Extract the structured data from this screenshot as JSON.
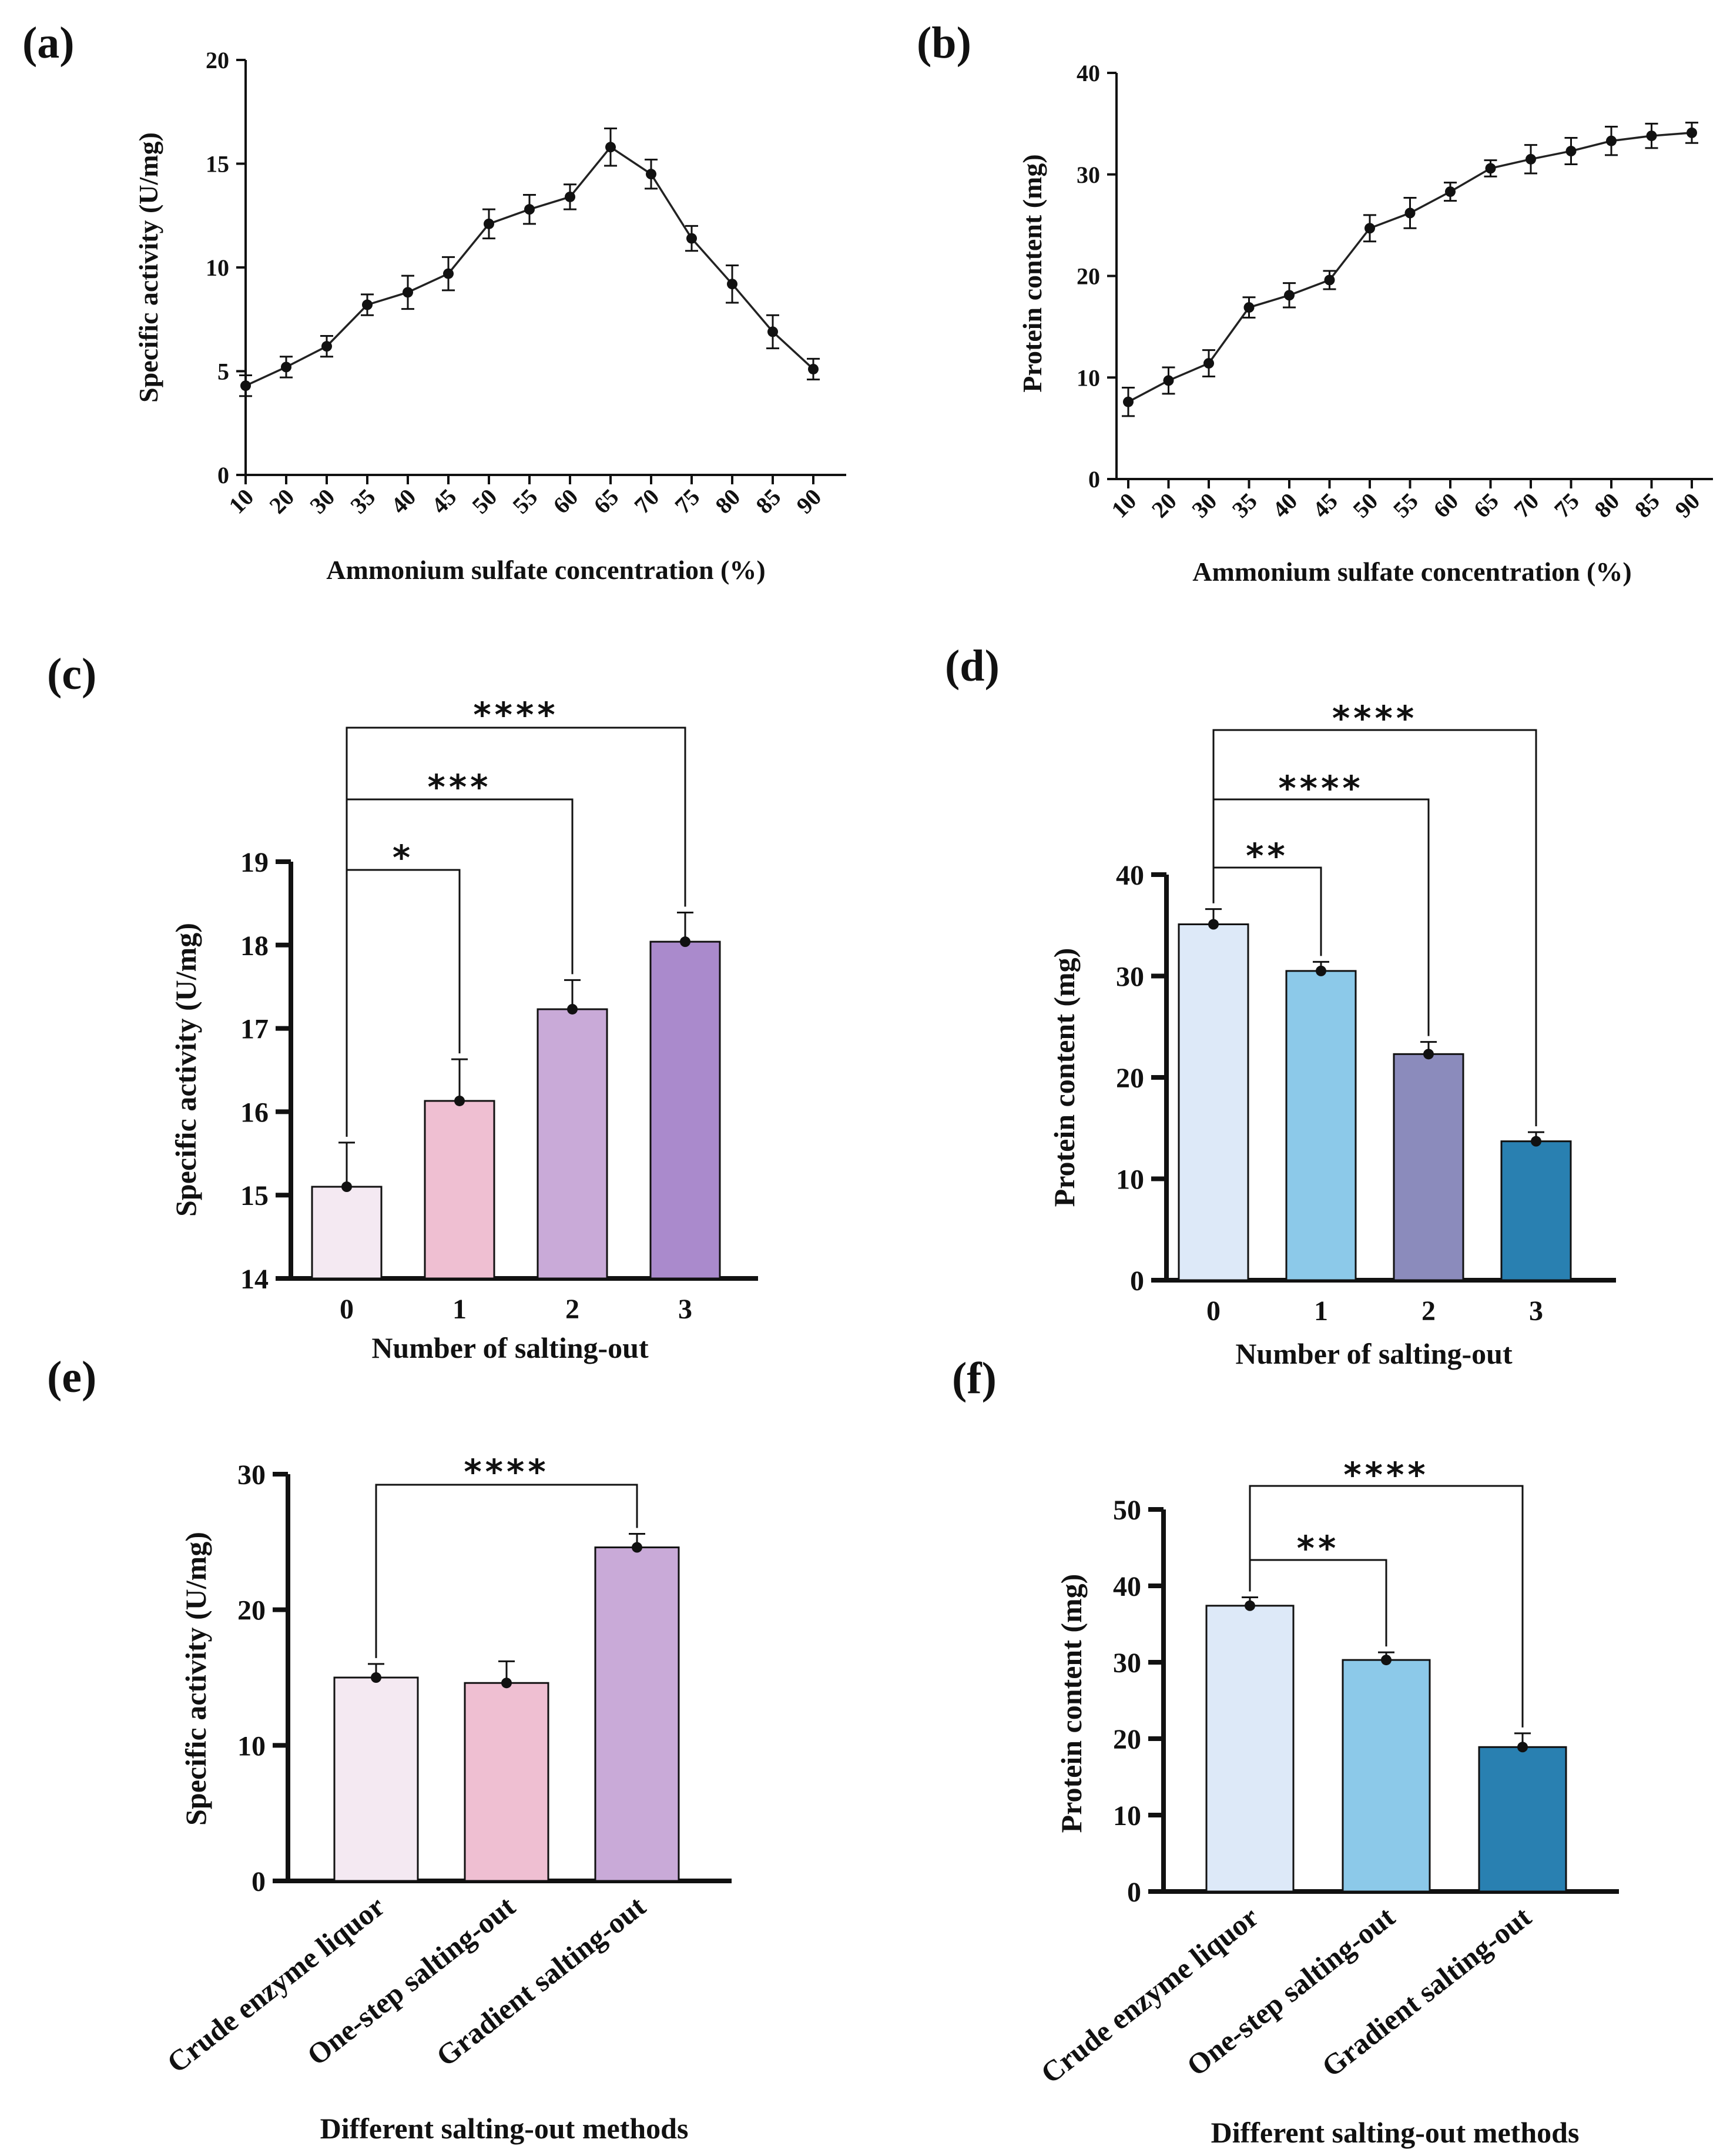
{
  "figure": {
    "panels": [
      "(a)",
      "(b)",
      "(c)",
      "(d)",
      "(e)",
      "(f)"
    ]
  },
  "chart_data": [
    {
      "id": "a",
      "label": "(a)",
      "type": "line",
      "xlabel": "Ammonium sulfate concentration (%)",
      "ylabel": "Specific activity (U/mg)",
      "categories": [
        "10",
        "20",
        "30",
        "35",
        "40",
        "45",
        "50",
        "55",
        "60",
        "65",
        "70",
        "75",
        "80",
        "85",
        "90"
      ],
      "values": [
        4.3,
        5.2,
        6.2,
        8.2,
        8.8,
        9.7,
        12.1,
        12.8,
        13.4,
        15.8,
        14.5,
        11.4,
        9.2,
        6.9,
        5.1
      ],
      "errors": [
        0.5,
        0.5,
        0.5,
        0.5,
        0.8,
        0.8,
        0.7,
        0.7,
        0.6,
        0.9,
        0.7,
        0.6,
        0.9,
        0.8,
        0.5
      ],
      "ylim": [
        0,
        20
      ],
      "yticks": [
        "0",
        "5",
        "10",
        "15",
        "20"
      ]
    },
    {
      "id": "b",
      "label": "(b)",
      "type": "line",
      "xlabel": "Ammonium sulfate concentration (%)",
      "ylabel": "Protein content (mg)",
      "categories": [
        "10",
        "20",
        "30",
        "35",
        "40",
        "45",
        "50",
        "55",
        "60",
        "65",
        "70",
        "75",
        "80",
        "85",
        "90"
      ],
      "values": [
        7.6,
        9.7,
        11.4,
        16.9,
        18.1,
        19.6,
        24.7,
        26.2,
        28.3,
        30.6,
        31.5,
        32.3,
        33.3,
        33.8,
        34.1
      ],
      "errors": [
        1.4,
        1.3,
        1.3,
        1.0,
        1.2,
        0.9,
        1.3,
        1.5,
        0.9,
        0.8,
        1.4,
        1.3,
        1.4,
        1.2,
        1.0
      ],
      "ylim": [
        0,
        40
      ],
      "yticks": [
        "0",
        "10",
        "20",
        "30",
        "40"
      ]
    },
    {
      "id": "c",
      "label": "(c)",
      "type": "bar",
      "xlabel": "Number of salting-out",
      "ylabel": "Specific activity (U/mg)",
      "categories": [
        "0",
        "1",
        "2",
        "3"
      ],
      "values": [
        15.1,
        16.13,
        17.23,
        18.04
      ],
      "errors": [
        0.53,
        0.5,
        0.35,
        0.35
      ],
      "colors": [
        "#f4e9f2",
        "#efbfd2",
        "#c9aad8",
        "#aa8acc"
      ],
      "ylim": [
        14,
        19
      ],
      "yticks": [
        "14",
        "15",
        "16",
        "17",
        "18",
        "19"
      ],
      "significance": [
        {
          "from": 0,
          "to": 1,
          "label": "*"
        },
        {
          "from": 0,
          "to": 2,
          "label": "***"
        },
        {
          "from": 0,
          "to": 3,
          "label": "****"
        }
      ]
    },
    {
      "id": "d",
      "label": "(d)",
      "type": "bar",
      "xlabel": "Number of salting-out",
      "ylabel": "Protein content (mg)",
      "categories": [
        "0",
        "1",
        "2",
        "3"
      ],
      "values": [
        35.1,
        30.5,
        22.3,
        13.7
      ],
      "errors": [
        1.5,
        0.9,
        1.2,
        0.9
      ],
      "colors": [
        "#dde9f8",
        "#8cc9e9",
        "#8b8bbc",
        "#2980b1"
      ],
      "ylim": [
        0,
        40
      ],
      "yticks": [
        "0",
        "10",
        "20",
        "30",
        "40"
      ],
      "significance": [
        {
          "from": 0,
          "to": 1,
          "label": "**"
        },
        {
          "from": 0,
          "to": 2,
          "label": "****"
        },
        {
          "from": 0,
          "to": 3,
          "label": "****"
        }
      ]
    },
    {
      "id": "e",
      "label": "(e)",
      "type": "bar",
      "xlabel": "Different salting-out methods",
      "ylabel": "Specific activity (U/mg)",
      "categories": [
        "Crude enzyme liquor",
        "One-step salting-out",
        "Gradient salting-out"
      ],
      "values": [
        15.0,
        14.6,
        24.6
      ],
      "errors": [
        1.0,
        1.6,
        1.0
      ],
      "colors": [
        "#f4e9f2",
        "#efbfd2",
        "#c9aad8"
      ],
      "ylim": [
        0,
        30
      ],
      "yticks": [
        "0",
        "10",
        "20",
        "30"
      ],
      "significance": [
        {
          "from": 0,
          "to": 2,
          "label": "****"
        }
      ]
    },
    {
      "id": "f",
      "label": "(f)",
      "type": "bar",
      "xlabel": "Different salting-out methods",
      "ylabel": "Protein content (mg)",
      "categories": [
        "Crude enzyme liquor",
        "One-step salting-out",
        "Gradient salting-out"
      ],
      "values": [
        37.4,
        30.3,
        18.9
      ],
      "errors": [
        1.1,
        1.0,
        1.8
      ],
      "colors": [
        "#dde9f8",
        "#8cc9e9",
        "#2980b1"
      ],
      "ylim": [
        0,
        50
      ],
      "yticks": [
        "0",
        "10",
        "20",
        "30",
        "40",
        "50"
      ],
      "significance": [
        {
          "from": 0,
          "to": 1,
          "label": "**"
        },
        {
          "from": 0,
          "to": 2,
          "label": "****"
        }
      ]
    }
  ]
}
